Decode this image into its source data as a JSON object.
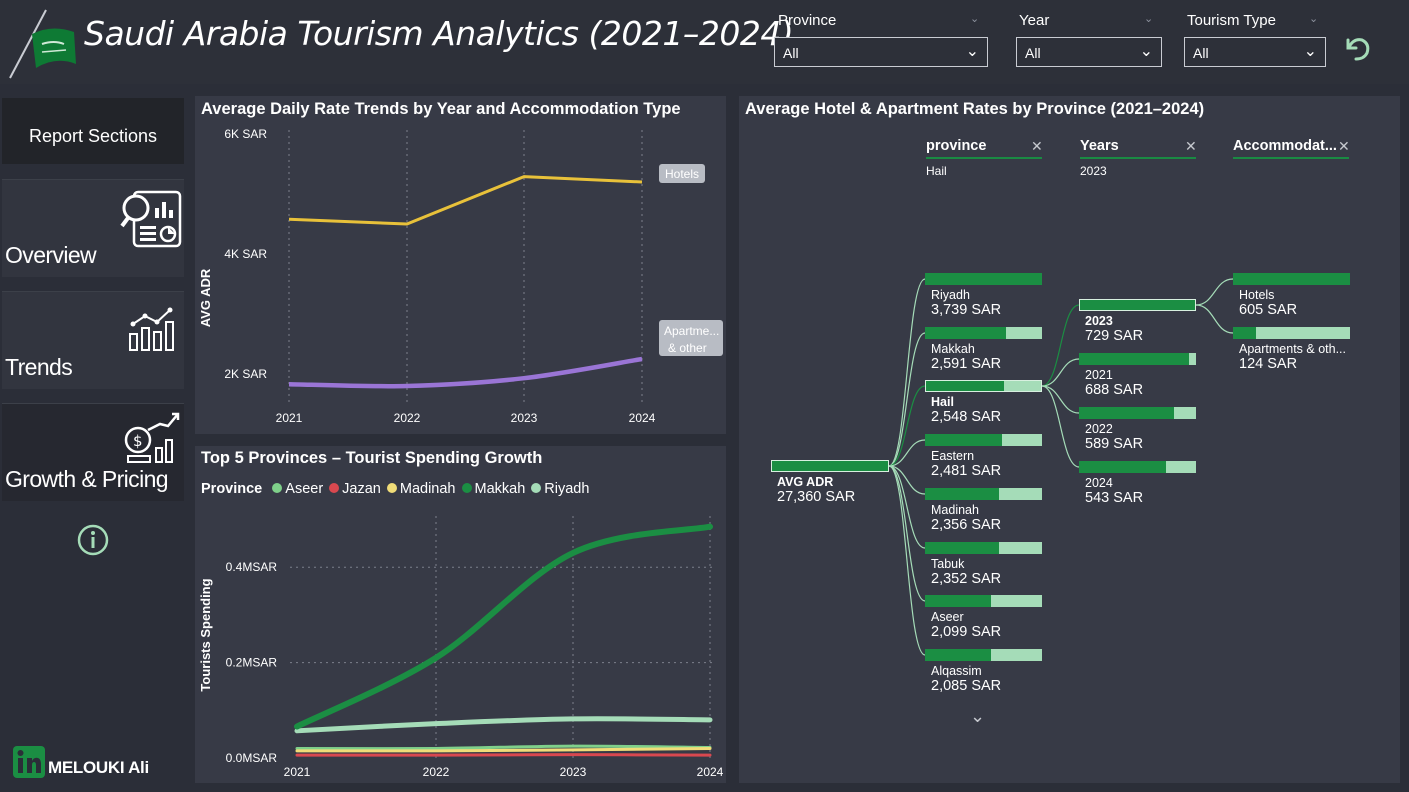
{
  "header": {
    "title": "Saudi Arabia Tourism Analytics (2021–2024)",
    "slicers": [
      {
        "label": "Province",
        "value": "All"
      },
      {
        "label": "Year",
        "value": "All"
      },
      {
        "label": "Tourism Type",
        "value": "All"
      }
    ],
    "back_icon": "undo-arrow-icon"
  },
  "sidebar": {
    "heading": "Report Sections",
    "items": [
      {
        "label": "Overview",
        "icon": "magnifier-dashboard-icon"
      },
      {
        "label": "Trends",
        "icon": "bar-trend-icon"
      },
      {
        "label": "Growth & Pricing",
        "icon": "coin-growth-icon"
      }
    ],
    "info_icon": "info-icon",
    "author": "MELOUKI Ali",
    "author_icon": "linkedin-icon"
  },
  "colors": {
    "hotels": "#e8c13a",
    "apartments": "#9a75d6",
    "aseer": "#7fd08a",
    "jazan": "#d9484f",
    "madinah": "#f0dc78",
    "makkah": "#1b8e43",
    "riyadh": "#a5dcb8"
  },
  "adr_chart": {
    "title": "Average Daily Rate Trends by Year and Accommodation Type",
    "chart_data": {
      "type": "line",
      "x": [
        "2021",
        "2022",
        "2023",
        "2024"
      ],
      "ylabel": "AVG ADR",
      "ylim": [
        1500,
        6000
      ],
      "yticks": [
        "2K SAR",
        "4K SAR",
        "6K SAR"
      ],
      "series": [
        {
          "name": "Hotels",
          "values": [
            4580,
            4500,
            5290,
            5200
          ]
        },
        {
          "name": "Apartme... & other",
          "values": [
            1830,
            1800,
            1930,
            2250
          ]
        }
      ]
    }
  },
  "spending_chart": {
    "title": "Top 5 Provinces – Tourist Spending Growth",
    "legend_title": "Province",
    "chart_data": {
      "type": "line",
      "x": [
        "2021",
        "2022",
        "2023",
        "2024"
      ],
      "ylabel": "Tourists Spending",
      "ylim": [
        0,
        0.52
      ],
      "yticks": [
        "0.0MSAR",
        "0.2MSAR",
        "0.4MSAR"
      ],
      "series": [
        {
          "name": "Aseer",
          "values": [
            0.02,
            0.02,
            0.025,
            0.022
          ]
        },
        {
          "name": "Jazan",
          "values": [
            0.006,
            0.006,
            0.007,
            0.006
          ]
        },
        {
          "name": "Madinah",
          "values": [
            0.015,
            0.015,
            0.017,
            0.02
          ]
        },
        {
          "name": "Makkah",
          "values": [
            0.066,
            0.21,
            0.43,
            0.485
          ]
        },
        {
          "name": "Riyadh",
          "values": [
            0.057,
            0.072,
            0.082,
            0.08
          ]
        }
      ]
    }
  },
  "decomp": {
    "title": "Average Hotel & Apartment Rates by Province (2021–2024)",
    "levels": [
      {
        "head": "province",
        "sub": "Hail"
      },
      {
        "head": "Years",
        "sub": "2023"
      },
      {
        "head": "Accommodat...",
        "sub": ""
      }
    ],
    "root": {
      "name": "AVG ADR",
      "value": "27,360 SAR"
    },
    "provinces": [
      {
        "name": "Riyadh",
        "value": "3,739 SAR",
        "fill": 1.0
      },
      {
        "name": "Makkah",
        "value": "2,591 SAR",
        "fill": 0.69
      },
      {
        "name": "Hail",
        "value": "2,548 SAR",
        "fill": 0.68,
        "selected": true
      },
      {
        "name": "Eastern",
        "value": "2,481 SAR",
        "fill": 0.66
      },
      {
        "name": "Madinah",
        "value": "2,356 SAR",
        "fill": 0.63
      },
      {
        "name": "Tabuk",
        "value": "2,352 SAR",
        "fill": 0.63
      },
      {
        "name": "Aseer",
        "value": "2,099 SAR",
        "fill": 0.56
      },
      {
        "name": "Alqassim",
        "value": "2,085 SAR",
        "fill": 0.56
      }
    ],
    "years": [
      {
        "name": "2023",
        "value": "729 SAR",
        "fill": 1.0,
        "selected": true
      },
      {
        "name": "2021",
        "value": "688 SAR",
        "fill": 0.94
      },
      {
        "name": "2022",
        "value": "589 SAR",
        "fill": 0.81
      },
      {
        "name": "2024",
        "value": "543 SAR",
        "fill": 0.74
      }
    ],
    "types": [
      {
        "name": "Hotels",
        "value": "605 SAR",
        "fill": 1.0
      },
      {
        "name": "Apartments & oth...",
        "value": "124 SAR",
        "fill": 0.2
      }
    ],
    "more_icon": "chevron-down-icon",
    "remove_icon": "close-icon"
  }
}
